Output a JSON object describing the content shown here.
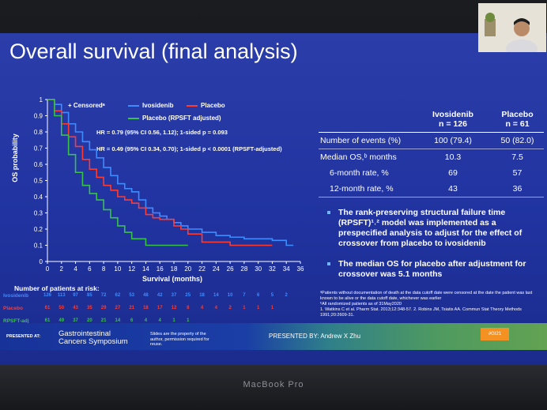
{
  "slide": {
    "title": "Overall survival (final analysis)",
    "legend": {
      "censored": "+ Censoredᵃ",
      "ivosidenib": "Ivosidenib",
      "placebo": "Placebo",
      "placebo_adj": "Placebo (RPSFT adjusted)"
    },
    "hr1": "HR = 0.79 (95% CI 0.56, 1.12); 1-sided p = 0.093",
    "hr2": "HR = 0.49 (95% CI 0.34, 0.70); 1-sided p < 0.0001 (RPSFT-adjusted)",
    "ylabel": "OS probability",
    "xlabel": "Survival (months)",
    "yticks": [
      "0",
      "0.1",
      "0.2",
      "0.3",
      "0.4",
      "0.5",
      "0.6",
      "0.7",
      "0.8",
      "0.9",
      "1"
    ],
    "xticks": [
      "0",
      "2",
      "4",
      "6",
      "8",
      "10",
      "12",
      "14",
      "16",
      "18",
      "20",
      "22",
      "24",
      "26",
      "28",
      "30",
      "32",
      "34",
      "36"
    ],
    "risk_title": "Number of patients at risk:",
    "risk_rows": [
      {
        "label": "Ivosidenib",
        "color": "#3f8cff",
        "values": [
          "126",
          "113",
          "97",
          "85",
          "72",
          "62",
          "53",
          "48",
          "42",
          "37",
          "25",
          "18",
          "14",
          "10",
          "7",
          "6",
          "5",
          "2"
        ]
      },
      {
        "label": "Placebo",
        "color": "#ff3b2f",
        "values": [
          "61",
          "50",
          "43",
          "35",
          "29",
          "27",
          "21",
          "18",
          "17",
          "12",
          "8",
          "4",
          "4",
          "2",
          "1",
          "1",
          "1"
        ]
      },
      {
        "label": "RPSFT-adj",
        "color": "#38c24a",
        "values": [
          "61",
          "49",
          "37",
          "20",
          "21",
          "14",
          "6",
          "4",
          "4",
          "1",
          "1"
        ]
      }
    ],
    "table": {
      "col1": "Ivosidenib",
      "col1_n": "n = 126",
      "col2": "Placebo",
      "col2_n": "n = 61",
      "rows": [
        {
          "label": "Number of events (%)",
          "v1": "100 (79.4)",
          "v2": "50 (82.0)"
        },
        {
          "label": "Median OS,ᵇ months",
          "v1": "10.3",
          "v2": "7.5"
        },
        {
          "label": "6-month rate, %",
          "v1": "69",
          "v2": "57"
        },
        {
          "label": "12-month rate, %",
          "v1": "43",
          "v2": "36"
        }
      ]
    },
    "bullets": [
      {
        "text": "The rank-preserving structural failure time (RPSFT)¹˒² model was implemented as a prespecified analysis to adjust for the effect of crossover from placebo to ivosidenib"
      },
      {
        "text_a": "The median OS for placebo after adjustment for crossover was ",
        "text_b": "5.1 months"
      }
    ],
    "footnotes": [
      "ᵃPatients without documentation of death at the data cutoff date were censored at the date the patient was last known to be alive or the data cutoff date, whichever was earlier",
      "ᵇAll randomized patients as of 31May2020",
      "1. Watkins C et al. Pharm Stat. 2013;12:348-57. 2. Robins JM, Tsiatis AA. Commun Stat Theory Methods 1991;20:2609-31."
    ],
    "footer": {
      "presented_at": "PRESENTED AT:",
      "symposium_line1": "Gastrointestinal",
      "symposium_line2": "Cancers Symposium",
      "disclaimer": "Slides are the property of the author, permission required for reuse.",
      "presenter": "PRESENTED BY: Andrew X Zhu",
      "badge": "#GI21"
    }
  },
  "device": {
    "brand": "MacBook Pro"
  },
  "colors": {
    "ivosidenib": "#3f8cff",
    "placebo": "#ff3b2f",
    "rpsft": "#38c24a",
    "slide_bg": "#2033a0"
  },
  "chart_data": {
    "type": "line",
    "title": "Overall survival (final analysis)",
    "xlabel": "Survival (months)",
    "ylabel": "OS probability",
    "xlim": [
      0,
      36
    ],
    "ylim": [
      0,
      1
    ],
    "grid": false,
    "legend": "top",
    "series": [
      {
        "name": "Ivosidenib",
        "color": "#3f8cff",
        "x": [
          0,
          1,
          2,
          3,
          4,
          5,
          6,
          7,
          8,
          9,
          10,
          11,
          12,
          13,
          14,
          15,
          16,
          17,
          18,
          19,
          20,
          21,
          22,
          24,
          26,
          28,
          30,
          32,
          34,
          35
        ],
        "y": [
          1,
          0.97,
          0.92,
          0.85,
          0.8,
          0.74,
          0.69,
          0.64,
          0.58,
          0.53,
          0.48,
          0.45,
          0.43,
          0.38,
          0.33,
          0.3,
          0.28,
          0.26,
          0.24,
          0.22,
          0.2,
          0.2,
          0.18,
          0.16,
          0.15,
          0.14,
          0.14,
          0.13,
          0.1,
          0.1
        ]
      },
      {
        "name": "Placebo",
        "color": "#ff3b2f",
        "x": [
          0,
          1,
          2,
          3,
          4,
          5,
          6,
          7,
          8,
          9,
          10,
          11,
          12,
          13,
          14,
          15,
          16,
          17,
          18,
          19,
          20,
          21,
          22,
          24,
          26,
          28,
          30,
          32
        ],
        "y": [
          1,
          0.93,
          0.85,
          0.77,
          0.71,
          0.63,
          0.57,
          0.52,
          0.47,
          0.44,
          0.4,
          0.38,
          0.36,
          0.33,
          0.29,
          0.27,
          0.26,
          0.26,
          0.22,
          0.2,
          0.17,
          0.17,
          0.12,
          0.12,
          0.1,
          0.1,
          0.1,
          0.1
        ]
      },
      {
        "name": "Placebo (RPSFT adjusted)",
        "color": "#38c24a",
        "x": [
          0,
          1,
          2,
          3,
          4,
          5,
          6,
          7,
          8,
          9,
          10,
          11,
          12,
          13,
          14,
          16,
          18,
          20
        ],
        "y": [
          1,
          0.9,
          0.78,
          0.66,
          0.55,
          0.47,
          0.42,
          0.38,
          0.32,
          0.27,
          0.22,
          0.18,
          0.14,
          0.14,
          0.1,
          0.1,
          0.1,
          0.1
        ]
      }
    ]
  }
}
